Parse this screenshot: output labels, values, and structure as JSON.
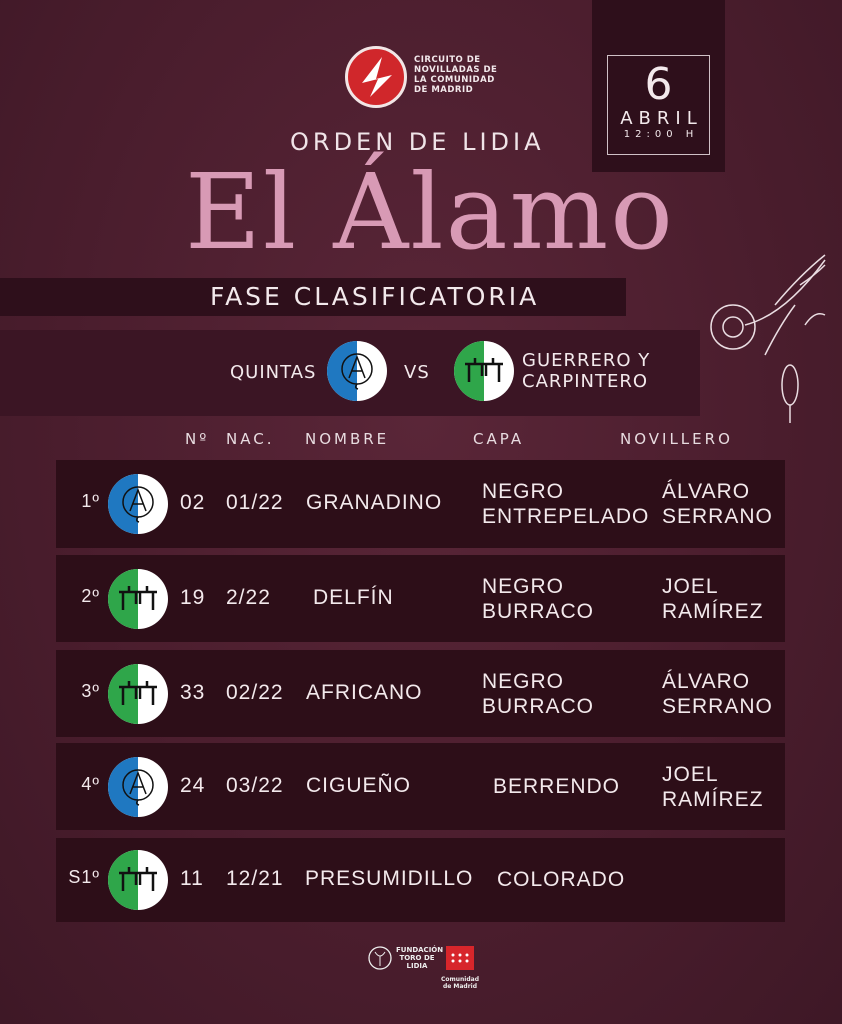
{
  "header": {
    "organizer": [
      "CIRCUITO DE",
      "NOVILLADAS DE",
      "LA COMUNIDAD",
      "DE MADRID"
    ],
    "subtitle": "ORDEN DE LIDIA",
    "title": "El Álamo",
    "phase": "FASE CLASIFICATORIA"
  },
  "date": {
    "day": "6",
    "month": "ABRIL",
    "time": "12:00 H"
  },
  "matchup": {
    "team1": "QUINTAS",
    "vs": "VS",
    "team2": [
      "GUERRERO Y",
      "CARPINTERO"
    ]
  },
  "colors": {
    "background": "#4a1d2d",
    "row": "#2d0e18",
    "title": "#d89ab5",
    "quintas": "#1f78c1",
    "guerrero": "#2fa64a"
  },
  "table": {
    "headers": [
      "Nº",
      "NAC.",
      "NOMBRE",
      "CAPA",
      "NOVILLERO"
    ],
    "rows": [
      {
        "order": "1º",
        "ganaderia": "quintas",
        "num": "02",
        "nac": "01/22",
        "nombre": "GRANADINO",
        "capa": [
          "NEGRO",
          "ENTREPELADO"
        ],
        "novillero": [
          "ÁLVARO",
          "SERRANO"
        ]
      },
      {
        "order": "2º",
        "ganaderia": "guerrero",
        "num": "19",
        "nac": "2/22",
        "nombre": "DELFÍN",
        "capa": [
          "NEGRO",
          "BURRACO"
        ],
        "novillero": [
          "JOEL",
          "RAMÍREZ"
        ]
      },
      {
        "order": "3º",
        "ganaderia": "guerrero",
        "num": "33",
        "nac": "02/22",
        "nombre": "AFRICANO",
        "capa": [
          "NEGRO",
          "BURRACO"
        ],
        "novillero": [
          "ÁLVARO",
          "SERRANO"
        ]
      },
      {
        "order": "4º",
        "ganaderia": "quintas",
        "num": "24",
        "nac": "03/22",
        "nombre": "CIGUEÑO",
        "capa": [
          "BERRENDO",
          ""
        ],
        "novillero": [
          "JOEL",
          "RAMÍREZ"
        ]
      },
      {
        "order": "S1º",
        "ganaderia": "guerrero",
        "num": "11",
        "nac": "12/21",
        "nombre": "PRESUMIDILLO",
        "capa": [
          "COLORADO",
          ""
        ],
        "novillero": [
          "",
          ""
        ]
      }
    ]
  },
  "footer": {
    "logo1": "FUNDACIÓN TORO DE LIDIA",
    "logo2": "Comunidad de Madrid"
  }
}
